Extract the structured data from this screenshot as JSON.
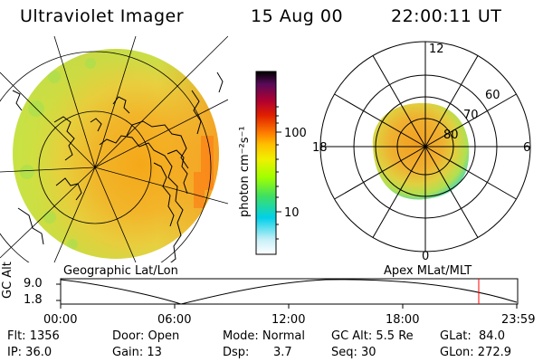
{
  "header": {
    "instrument": "Ultraviolet Imager",
    "date": "15 Aug 00",
    "time": "22:00:11 UT"
  },
  "colorbar": {
    "unit_label": "photon cm⁻²s⁻¹",
    "ticks": [
      "100",
      "10"
    ],
    "colors": [
      "#ffffff",
      "#c8f0f8",
      "#00d0e8",
      "#40e060",
      "#a0ff00",
      "#f0f000",
      "#ffc000",
      "#ff8000",
      "#e02000",
      "#b00030",
      "#5a0a5a",
      "#000000"
    ]
  },
  "geo_panel": {
    "label": "Geographic Lat/Lon"
  },
  "polar_panel": {
    "label": "Apex MLat/MLT",
    "mlt_labels": {
      "top": "12",
      "left": "18",
      "right": "6",
      "bottom": "0"
    },
    "lat_labels": [
      "60",
      "70",
      "80"
    ]
  },
  "orbit_plot": {
    "ylabel": "GC Alt",
    "yticks": [
      "9.0",
      "1.8"
    ],
    "xticks": [
      "00:00",
      "06:00",
      "12:00",
      "18:00",
      "23:59"
    ],
    "current_time_hours": 22.0,
    "marker_color": "#ff0000"
  },
  "info": {
    "flt": "Flt: 1356",
    "door": "Door: Open",
    "mode": "Mode: Normal",
    "gc_alt": "GC Alt: 5.5 Re",
    "glat": "GLat:  84.0",
    "ip": "IP: 36.0",
    "gain": "Gain: 13",
    "dsp_label": "Dsp:",
    "dsp_value": "3.7",
    "seq": "Seq: 30",
    "glon": "GLon: 272.9"
  }
}
